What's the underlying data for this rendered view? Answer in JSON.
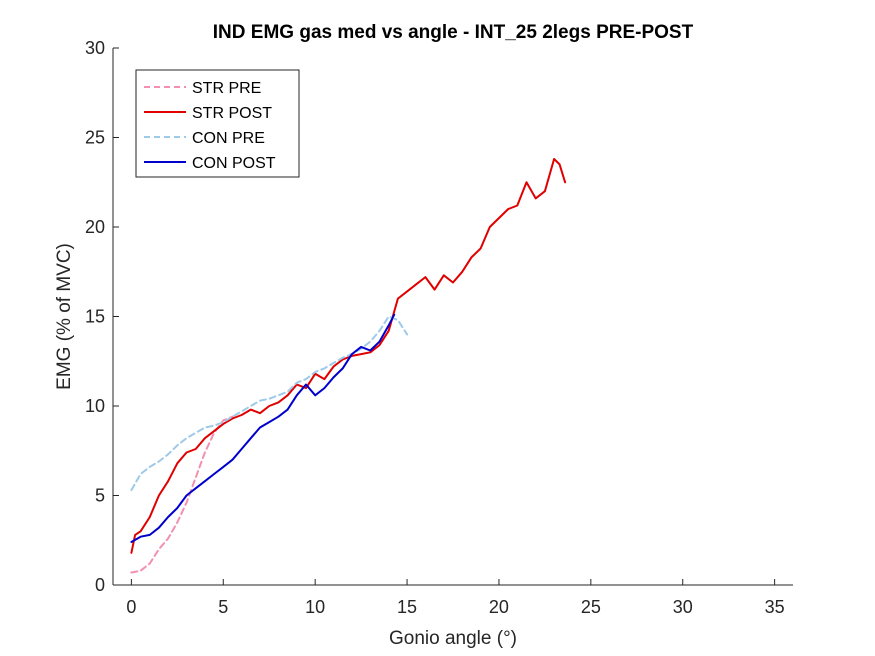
{
  "chart_data": {
    "type": "line",
    "title": "IND EMG gas med vs angle - INT_25 2legs PRE-POST",
    "xlabel": "Gonio angle (°)",
    "ylabel": "EMG (% of MVC)",
    "xlim": [
      -1,
      36
    ],
    "ylim": [
      0,
      30
    ],
    "xticks": [
      0,
      5,
      10,
      15,
      20,
      25,
      30,
      35
    ],
    "yticks": [
      0,
      5,
      10,
      15,
      20,
      25,
      30
    ],
    "xtick_labels": [
      "0",
      "5",
      "10",
      "15",
      "20",
      "25",
      "30",
      "35"
    ],
    "ytick_labels": [
      "0",
      "5",
      "10",
      "15",
      "20",
      "25",
      "30"
    ],
    "grid": false,
    "legend_position": "top-left",
    "series": [
      {
        "name": "STR PRE",
        "color": "#f48fb1",
        "style": "dashed",
        "x": [
          0,
          0.5,
          1,
          1.5,
          2,
          2.5,
          3,
          3.5,
          4,
          4.5,
          5,
          5.5
        ],
        "y": [
          0.7,
          0.8,
          1.2,
          2.0,
          2.6,
          3.5,
          4.6,
          6.0,
          7.4,
          8.5,
          9.2,
          9.4
        ]
      },
      {
        "name": "STR POST",
        "color": "#e00000",
        "style": "solid",
        "x": [
          0,
          0.2,
          0.5,
          1,
          1.5,
          2,
          2.5,
          3,
          3.5,
          4,
          4.5,
          5,
          5.5,
          6,
          6.5,
          7,
          7.5,
          8,
          8.5,
          9,
          9.5,
          10,
          10.5,
          11,
          11.5,
          12,
          12.5,
          13,
          13.5,
          14,
          14.5,
          15,
          15.5,
          16,
          16.5,
          17,
          17.5,
          18,
          18.5,
          19,
          19.5,
          20,
          20.5,
          21,
          21.5,
          22,
          22.5,
          23,
          23.3,
          23.6
        ],
        "y": [
          1.8,
          2.8,
          3.0,
          3.8,
          5.0,
          5.8,
          6.8,
          7.4,
          7.6,
          8.2,
          8.6,
          9.0,
          9.3,
          9.5,
          9.8,
          9.6,
          10.0,
          10.2,
          10.6,
          11.2,
          11.0,
          11.8,
          11.5,
          12.2,
          12.6,
          12.8,
          12.9,
          13.0,
          13.4,
          14.2,
          16.0,
          16.4,
          16.8,
          17.2,
          16.5,
          17.3,
          16.9,
          17.5,
          18.3,
          18.8,
          20.0,
          20.5,
          21.0,
          21.2,
          22.5,
          21.6,
          22.0,
          23.8,
          23.5,
          22.5
        ]
      },
      {
        "name": "CON PRE",
        "color": "#9ecae9",
        "style": "dashed",
        "x": [
          0,
          0.5,
          1,
          1.5,
          2,
          2.5,
          3,
          3.5,
          4,
          4.5,
          5,
          5.5,
          6,
          6.5,
          7,
          7.5,
          8,
          8.5,
          9,
          9.5,
          10,
          10.5,
          11,
          11.5,
          12,
          12.5,
          13,
          13.5,
          14,
          14.5,
          15
        ],
        "y": [
          5.3,
          6.2,
          6.6,
          6.9,
          7.3,
          7.8,
          8.2,
          8.5,
          8.8,
          8.9,
          9.1,
          9.4,
          9.7,
          10.0,
          10.3,
          10.4,
          10.6,
          10.8,
          11.3,
          11.5,
          11.9,
          12.1,
          12.4,
          12.7,
          12.9,
          13.2,
          13.6,
          14.2,
          15.0,
          14.8,
          14.0
        ]
      },
      {
        "name": "CON POST",
        "color": "#0000cc",
        "style": "solid",
        "x": [
          0,
          0.5,
          1,
          1.5,
          2,
          2.5,
          3,
          3.5,
          4,
          4.5,
          5,
          5.5,
          6,
          6.5,
          7,
          7.5,
          8,
          8.5,
          9,
          9.5,
          10,
          10.5,
          11,
          11.5,
          12,
          12.5,
          13,
          13.5,
          14,
          14.3
        ],
        "y": [
          2.4,
          2.7,
          2.8,
          3.2,
          3.8,
          4.3,
          5.0,
          5.4,
          5.8,
          6.2,
          6.6,
          7.0,
          7.6,
          8.2,
          8.8,
          9.1,
          9.4,
          9.8,
          10.6,
          11.2,
          10.6,
          11.0,
          11.6,
          12.1,
          12.9,
          13.3,
          13.1,
          13.6,
          14.5,
          15.1
        ]
      }
    ]
  }
}
